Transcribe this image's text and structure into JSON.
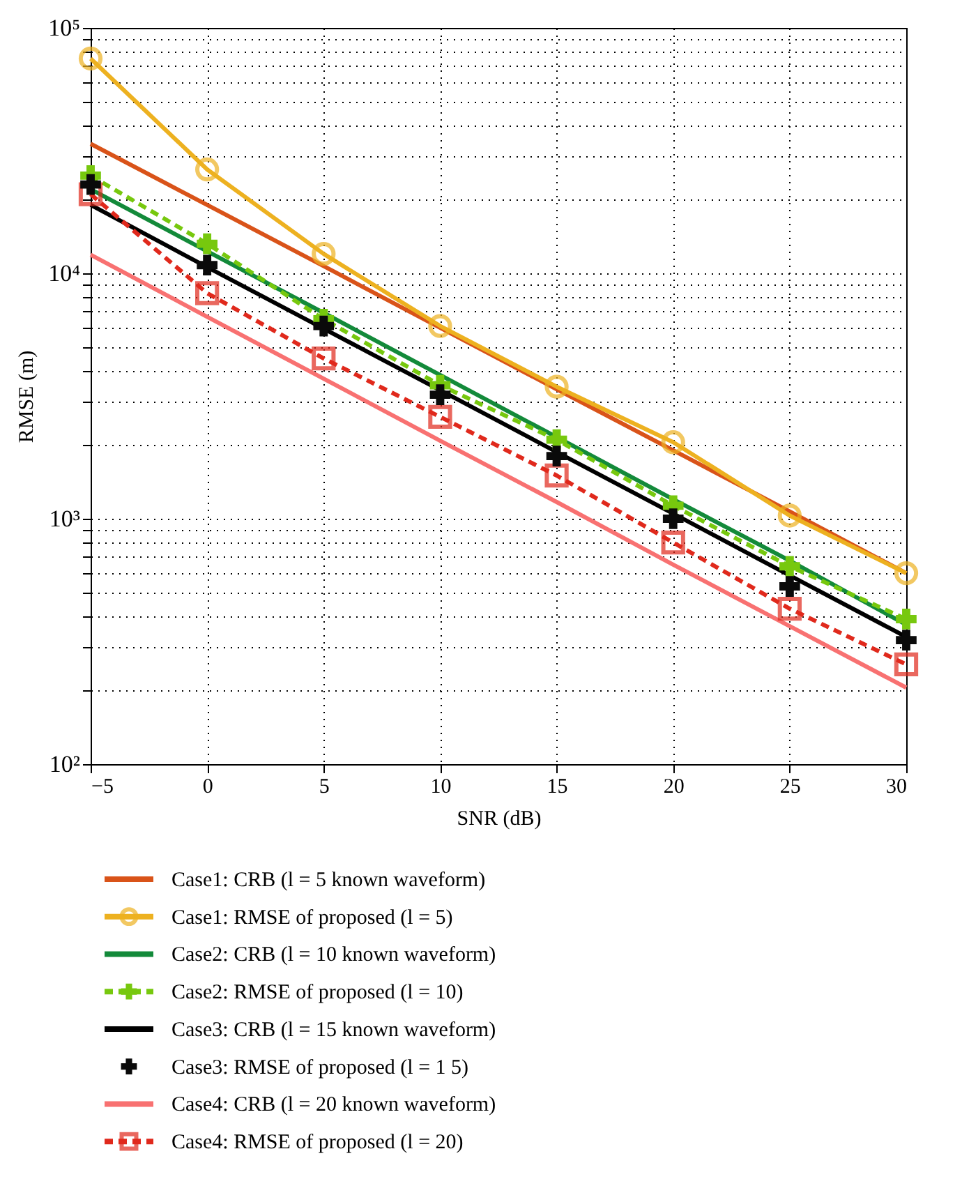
{
  "chart_data": {
    "type": "line",
    "xlabel": "SNR (dB)",
    "ylabel": "RMSE (m)",
    "x": [
      -5,
      0,
      5,
      10,
      15,
      20,
      25,
      30
    ],
    "xlim": [
      -5,
      30
    ],
    "xticks": [
      -5,
      0,
      5,
      10,
      15,
      20,
      25,
      30
    ],
    "log": "y",
    "ylim": [
      100,
      100000
    ],
    "yticks": [
      {
        "value": 100,
        "label": "10²"
      },
      {
        "value": 200,
        "label": null
      },
      {
        "value": 300,
        "label": null
      },
      {
        "value": 400,
        "label": null
      },
      {
        "value": 500,
        "label": null
      },
      {
        "value": 600,
        "label": null
      },
      {
        "value": 700,
        "label": null
      },
      {
        "value": 800,
        "label": null
      },
      {
        "value": 900,
        "label": null
      },
      {
        "value": 1000,
        "label": "10³"
      },
      {
        "value": 2000,
        "label": null
      },
      {
        "value": 3000,
        "label": null
      },
      {
        "value": 4000,
        "label": null
      },
      {
        "value": 5000,
        "label": null
      },
      {
        "value": 6000,
        "label": null
      },
      {
        "value": 7000,
        "label": null
      },
      {
        "value": 8000,
        "label": null
      },
      {
        "value": 9000,
        "label": null
      },
      {
        "value": 10000,
        "label": "10⁴"
      },
      {
        "value": 20000,
        "label": null
      },
      {
        "value": 30000,
        "label": null
      },
      {
        "value": 40000,
        "label": null
      },
      {
        "value": 50000,
        "label": null
      },
      {
        "value": 60000,
        "label": null
      },
      {
        "value": 70000,
        "label": null
      },
      {
        "value": 80000,
        "label": null
      },
      {
        "value": 90000,
        "label": null
      },
      {
        "value": 100000,
        "label": "10⁵"
      }
    ],
    "grid": true,
    "legend": "bottom",
    "series": [
      {
        "name": "Case1: CRB (l = 5 known waveform)",
        "color": "#d95319",
        "marker": "none",
        "line_style": "solid",
        "values": [
          33700,
          19000,
          10700,
          6000,
          3370,
          1900,
          1070,
          600
        ]
      },
      {
        "name": "Case1: RMSE of proposed (l = 5)",
        "color": "#edb120",
        "marker": "circle",
        "line_style": "solid",
        "values": [
          75000,
          26500,
          12000,
          6100,
          3450,
          2050,
          1030,
          600
        ]
      },
      {
        "name": "Case2: CRB (l = 10 known waveform)",
        "color": "#138a3a",
        "marker": "none",
        "line_style": "solid",
        "values": [
          22000,
          12300,
          6900,
          3850,
          2150,
          1200,
          675,
          370
        ]
      },
      {
        "name": "Case2: RMSE of proposed (l = 10)",
        "color": "#77c80e",
        "marker": "cross",
        "line_style": "dashed",
        "values": [
          25000,
          13200,
          6500,
          3500,
          2100,
          1130,
          640,
          390
        ]
      },
      {
        "name": "Case3: CRB (l = 15 known waveform)",
        "color": "#000000",
        "marker": "none",
        "line_style": "solid",
        "values": [
          19000,
          10600,
          5950,
          3340,
          1870,
          1050,
          587,
          330
        ]
      },
      {
        "name": "Case3: RMSE of proposed (l = 1 5)",
        "color": "#0a0a0a",
        "type": "scatter",
        "marker": "cross",
        "values": [
          23000,
          10800,
          6100,
          3200,
          1800,
          1000,
          530,
          320
        ]
      },
      {
        "name": "Case4: CRB (l = 20 known waveform)",
        "color": "#f87171",
        "marker": "none",
        "line_style": "solid",
        "values": [
          11900,
          6650,
          3720,
          2080,
          1170,
          650,
          365,
          205
        ]
      },
      {
        "name": "Case4: RMSE of proposed (l = 20)",
        "color": "#e0291c",
        "marker": "square",
        "line_style": "dashed",
        "values": [
          21000,
          8300,
          4500,
          2600,
          1500,
          800,
          430,
          255
        ]
      }
    ]
  }
}
